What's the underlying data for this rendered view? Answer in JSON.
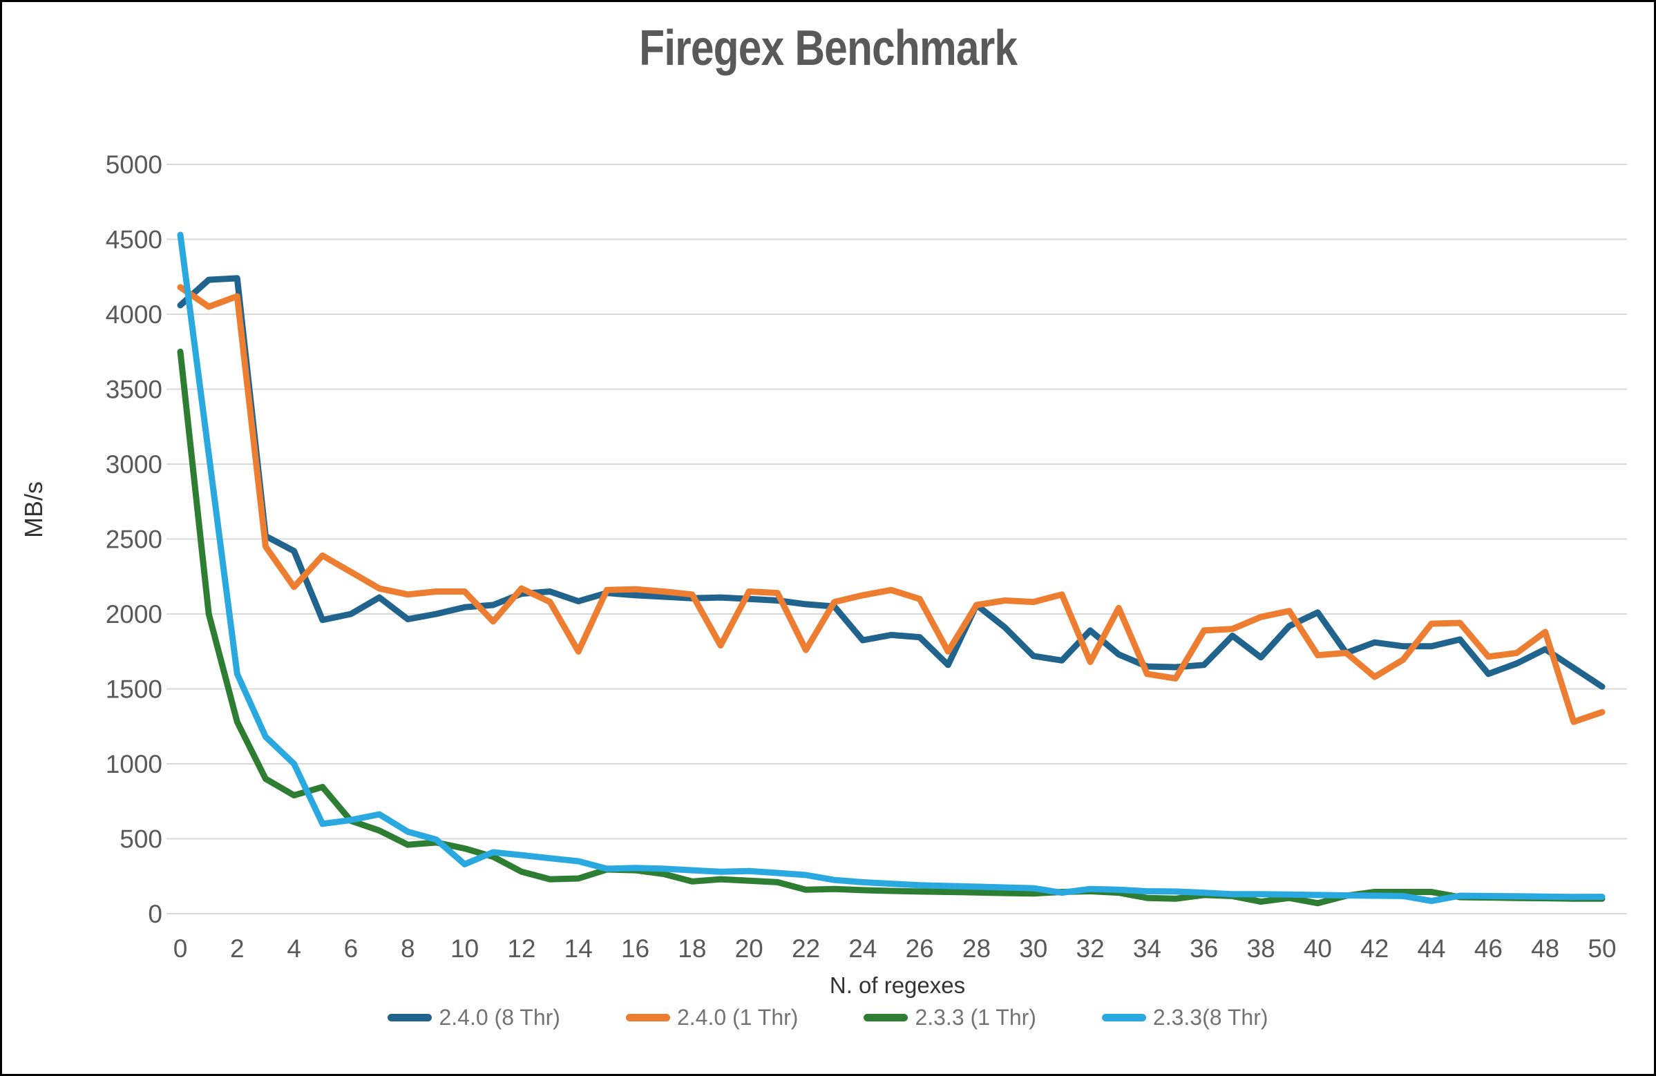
{
  "title": "Firegex Benchmark",
  "chart_data": {
    "type": "line",
    "title": "Firegex Benchmark",
    "xlabel": "N. of regexes",
    "ylabel": "MB/s",
    "x_min": 0,
    "x_max": 50,
    "x_tick_step": 2,
    "y_min": 0,
    "y_max": 5000,
    "y_tick_step": 500,
    "grid": "horizontal",
    "legend_position": "bottom",
    "x": [
      0,
      1,
      2,
      3,
      4,
      5,
      6,
      7,
      8,
      9,
      10,
      11,
      12,
      13,
      14,
      15,
      16,
      17,
      18,
      19,
      20,
      21,
      22,
      23,
      24,
      25,
      26,
      27,
      28,
      29,
      30,
      31,
      32,
      33,
      34,
      35,
      36,
      37,
      38,
      39,
      40,
      41,
      42,
      43,
      44,
      45,
      46,
      47,
      48,
      49,
      50
    ],
    "series": [
      {
        "name": "2.4.0 (8 Thr)",
        "color": "#20638c",
        "values": [
          4060,
          4230,
          4240,
          2520,
          2420,
          1960,
          2000,
          2110,
          1965,
          2000,
          2045,
          2060,
          2135,
          2150,
          2085,
          2140,
          2125,
          2115,
          2105,
          2110,
          2100,
          2090,
          2065,
          2050,
          1825,
          1860,
          1845,
          1660,
          2060,
          1910,
          1720,
          1690,
          1890,
          1730,
          1650,
          1645,
          1660,
          1855,
          1710,
          1920,
          2010,
          1740,
          1810,
          1785,
          1785,
          1830,
          1600,
          1670,
          1765,
          1640,
          1515
        ]
      },
      {
        "name": "2.4.0 (1 Thr)",
        "color": "#ed7d31",
        "values": [
          4180,
          4050,
          4120,
          2450,
          2180,
          2390,
          2280,
          2170,
          2130,
          2150,
          2150,
          1950,
          2170,
          2080,
          1750,
          2160,
          2165,
          2150,
          2130,
          1790,
          2150,
          2140,
          1760,
          2080,
          2125,
          2160,
          2100,
          1750,
          2060,
          2090,
          2080,
          2130,
          1680,
          2040,
          1600,
          1570,
          1890,
          1900,
          1980,
          2020,
          1725,
          1740,
          1580,
          1695,
          1935,
          1940,
          1715,
          1740,
          1880,
          1280,
          1345
        ]
      },
      {
        "name": "2.3.3 (1 Thr)",
        "color": "#2d7d32",
        "values": [
          3750,
          2000,
          1280,
          900,
          790,
          845,
          620,
          555,
          460,
          475,
          435,
          380,
          280,
          230,
          235,
          295,
          290,
          265,
          215,
          230,
          220,
          210,
          160,
          165,
          157,
          152,
          148,
          145,
          142,
          138,
          135,
          145,
          150,
          140,
          105,
          100,
          125,
          118,
          80,
          105,
          70,
          120,
          145,
          145,
          145,
          110,
          108,
          105,
          103,
          100,
          100
        ]
      },
      {
        "name": "2.3.3(8 Thr)",
        "color": "#29a9e0",
        "values": [
          4530,
          3065,
          1600,
          1180,
          1000,
          600,
          625,
          663,
          547,
          495,
          330,
          410,
          391,
          370,
          350,
          300,
          305,
          300,
          290,
          280,
          285,
          272,
          258,
          225,
          210,
          200,
          190,
          185,
          180,
          175,
          170,
          140,
          165,
          160,
          150,
          148,
          140,
          130,
          130,
          128,
          125,
          122,
          120,
          118,
          85,
          120,
          118,
          116,
          114,
          112,
          113
        ]
      }
    ]
  },
  "colors": {
    "title_text": "#595959",
    "tick_labels": "#595959",
    "axis_titles": "#333333",
    "legend_text": "#737373",
    "gridline": "#d9d9d9",
    "background": "#ffffff",
    "border": "#000000"
  }
}
